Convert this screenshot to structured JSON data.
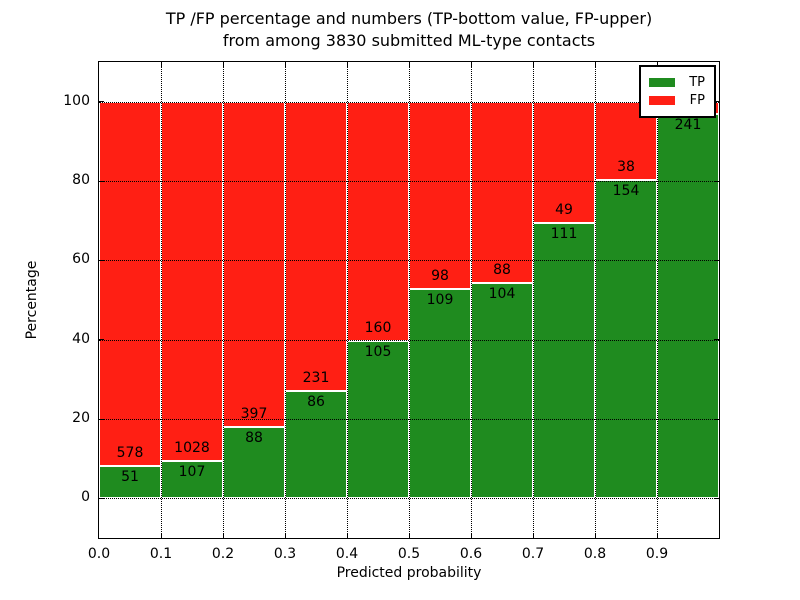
{
  "figure": {
    "title_line1": "TP /FP percentage and numbers (TP-bottom value, FP-upper)",
    "title_line2": "from among 3830 submitted ML-type contacts"
  },
  "chart_data": {
    "type": "bar",
    "stacked": true,
    "normalized": "percent",
    "title": "TP /FP percentage and numbers (TP-bottom value, FP-upper) from among 3830 submitted ML-type contacts",
    "total_contacts": 3830,
    "xlabel": "Predicted probability",
    "ylabel": "Percentage",
    "xlim": [
      0.0,
      1.0
    ],
    "ylim": [
      -10,
      110
    ],
    "x_ticks": [
      0.0,
      0.1,
      0.2,
      0.3,
      0.4,
      0.5,
      0.6,
      0.7,
      0.8,
      0.9
    ],
    "x_tick_labels": [
      "0.0",
      "0.1",
      "0.2",
      "0.3",
      "0.4",
      "0.5",
      "0.6",
      "0.7",
      "0.8",
      "0.9"
    ],
    "y_ticks": [
      0,
      20,
      40,
      60,
      80,
      100
    ],
    "y_tick_labels": [
      "0",
      "20",
      "40",
      "60",
      "80",
      "100"
    ],
    "grid": "dotted",
    "colors": {
      "tp": "#1f8b1f",
      "fp": "#ff1f14"
    },
    "legend": {
      "position": "upper right",
      "entries": [
        {
          "label": "TP",
          "color": "#1f8b1f"
        },
        {
          "label": "FP",
          "color": "#ff1f14"
        }
      ]
    },
    "categories": [
      "0.0-0.1",
      "0.1-0.2",
      "0.2-0.3",
      "0.3-0.4",
      "0.4-0.5",
      "0.5-0.6",
      "0.6-0.7",
      "0.7-0.8",
      "0.8-0.9",
      "0.9-1.0"
    ],
    "series": [
      {
        "name": "TP",
        "values": [
          51,
          107,
          88,
          86,
          105,
          109,
          104,
          111,
          154,
          241
        ]
      },
      {
        "name": "FP",
        "values": [
          578,
          1028,
          397,
          231,
          160,
          98,
          88,
          49,
          38,
          null
        ]
      }
    ],
    "bins": [
      {
        "range": "0.0-0.1",
        "tp_label": "51",
        "fp_label": "578",
        "tp_percent": 8.1
      },
      {
        "range": "0.1-0.2",
        "tp_label": "107",
        "fp_label": "1028",
        "tp_percent": 9.4
      },
      {
        "range": "0.2-0.3",
        "tp_label": "88",
        "fp_label": "397",
        "tp_percent": 18.1
      },
      {
        "range": "0.3-0.4",
        "tp_label": "86",
        "fp_label": "231",
        "tp_percent": 27.1
      },
      {
        "range": "0.4-0.5",
        "tp_label": "105",
        "fp_label": "160",
        "tp_percent": 39.6
      },
      {
        "range": "0.5-0.6",
        "tp_label": "109",
        "fp_label": "98",
        "tp_percent": 52.7
      },
      {
        "range": "0.6-0.7",
        "tp_label": "104",
        "fp_label": "88",
        "tp_percent": 54.2
      },
      {
        "range": "0.7-0.8",
        "tp_label": "111",
        "fp_label": "49",
        "tp_percent": 69.4
      },
      {
        "range": "0.8-0.9",
        "tp_label": "154",
        "fp_label": "38",
        "tp_percent": 80.2
      },
      {
        "range": "0.9-1.0",
        "tp_label": "241",
        "fp_label": null,
        "tp_percent": 96.8
      }
    ]
  }
}
